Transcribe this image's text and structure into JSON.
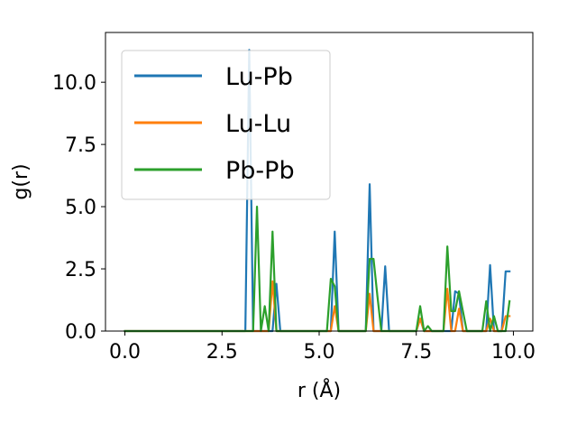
{
  "chart_data": {
    "type": "line",
    "title": "",
    "xlabel": "r (Å)",
    "ylabel": "g(r)",
    "xlim": [
      -0.5,
      10.5
    ],
    "ylim": [
      0,
      12.0
    ],
    "xticks": [
      "0.0",
      "2.5",
      "5.0",
      "7.5",
      "10.0"
    ],
    "yticks": [
      "0.0",
      "2.5",
      "5.0",
      "7.5",
      "10.0"
    ],
    "grid": false,
    "legend_position": "top-left",
    "series": [
      {
        "name": "Lu-Pb",
        "color": "#1f77b4",
        "points": [
          [
            0,
            0
          ],
          [
            3.1,
            0
          ],
          [
            3.2,
            11.3
          ],
          [
            3.3,
            0
          ],
          [
            3.4,
            0
          ],
          [
            3.8,
            0
          ],
          [
            3.9,
            1.9
          ],
          [
            4.0,
            0
          ],
          [
            5.3,
            0
          ],
          [
            5.4,
            4.0
          ],
          [
            5.5,
            0
          ],
          [
            6.2,
            0
          ],
          [
            6.3,
            5.9
          ],
          [
            6.4,
            0
          ],
          [
            6.6,
            0
          ],
          [
            6.7,
            2.6
          ],
          [
            6.8,
            0
          ],
          [
            7.5,
            0
          ],
          [
            7.6,
            0.5
          ],
          [
            7.7,
            0
          ],
          [
            8.4,
            0
          ],
          [
            8.5,
            1.6
          ],
          [
            8.6,
            1.5
          ],
          [
            8.7,
            0
          ],
          [
            9.3,
            0
          ],
          [
            9.4,
            2.65
          ],
          [
            9.5,
            0
          ],
          [
            9.7,
            0
          ],
          [
            9.8,
            2.4
          ],
          [
            9.9,
            2.4
          ]
        ]
      },
      {
        "name": "Lu-Lu",
        "color": "#ff7f0e",
        "points": [
          [
            0,
            0
          ],
          [
            3.7,
            0
          ],
          [
            3.8,
            2.0
          ],
          [
            3.9,
            0
          ],
          [
            5.3,
            0
          ],
          [
            5.4,
            1.0
          ],
          [
            5.5,
            0
          ],
          [
            6.2,
            0
          ],
          [
            6.3,
            1.5
          ],
          [
            6.4,
            0
          ],
          [
            7.5,
            0
          ],
          [
            7.6,
            0.5
          ],
          [
            7.7,
            0
          ],
          [
            8.2,
            0
          ],
          [
            8.3,
            1.7
          ],
          [
            8.4,
            0
          ],
          [
            8.5,
            0
          ],
          [
            8.6,
            0.9
          ],
          [
            8.7,
            0
          ],
          [
            9.3,
            0
          ],
          [
            9.4,
            0.5
          ],
          [
            9.5,
            0
          ],
          [
            9.7,
            0
          ],
          [
            9.8,
            0.6
          ],
          [
            9.9,
            0.6
          ]
        ]
      },
      {
        "name": "Pb-Pb",
        "color": "#2ca02c",
        "points": [
          [
            0,
            0
          ],
          [
            3.2,
            0
          ],
          [
            3.3,
            0
          ],
          [
            3.4,
            5.0
          ],
          [
            3.5,
            0
          ],
          [
            3.6,
            1.0
          ],
          [
            3.7,
            0
          ],
          [
            3.8,
            4.0
          ],
          [
            3.9,
            0
          ],
          [
            5.2,
            0
          ],
          [
            5.3,
            2.1
          ],
          [
            5.4,
            1.8
          ],
          [
            5.5,
            0
          ],
          [
            6.2,
            0
          ],
          [
            6.3,
            2.9
          ],
          [
            6.4,
            2.9
          ],
          [
            6.5,
            1.4
          ],
          [
            6.6,
            0
          ],
          [
            7.5,
            0
          ],
          [
            7.6,
            1.0
          ],
          [
            7.7,
            0
          ],
          [
            7.8,
            0.2
          ],
          [
            7.9,
            0
          ],
          [
            8.2,
            0
          ],
          [
            8.3,
            3.4
          ],
          [
            8.4,
            0.8
          ],
          [
            8.5,
            0.8
          ],
          [
            8.6,
            1.6
          ],
          [
            8.7,
            0.8
          ],
          [
            8.8,
            0
          ],
          [
            9.2,
            0
          ],
          [
            9.3,
            1.2
          ],
          [
            9.4,
            0
          ],
          [
            9.5,
            0.6
          ],
          [
            9.6,
            0
          ],
          [
            9.8,
            0
          ],
          [
            9.9,
            1.2
          ]
        ]
      }
    ]
  }
}
